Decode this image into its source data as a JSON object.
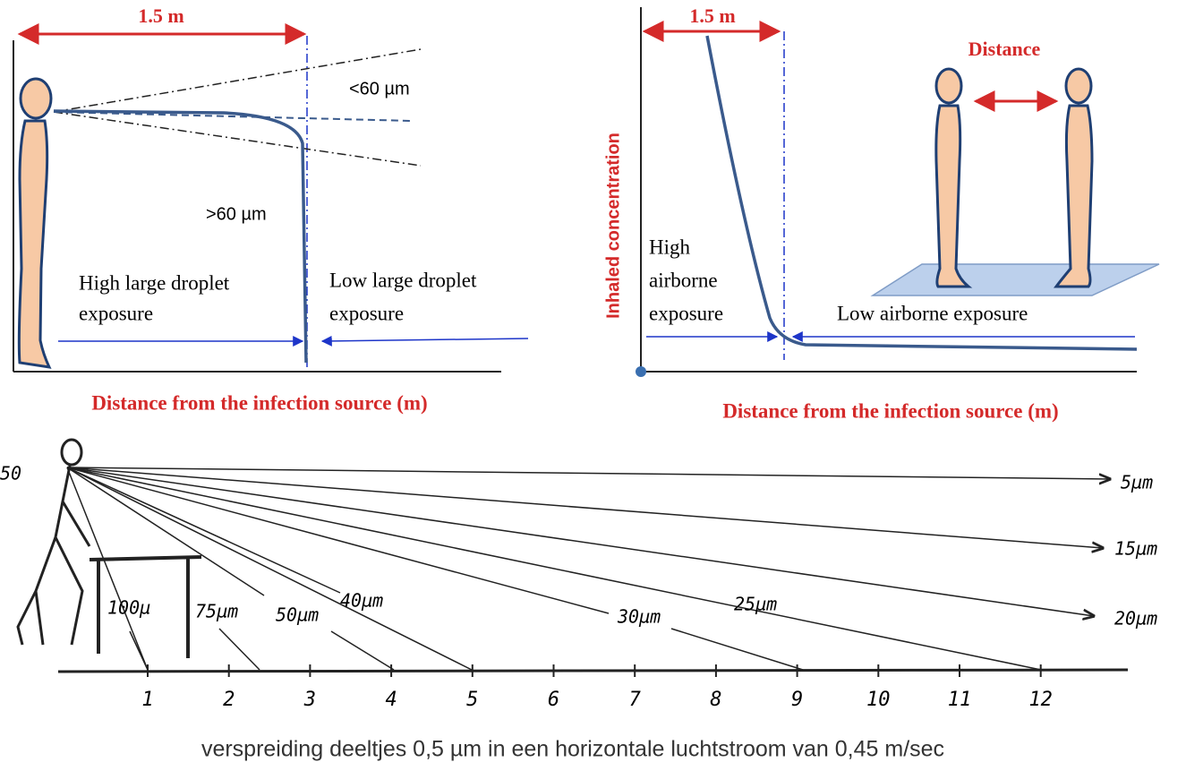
{
  "left_panel": {
    "distance": "1.5 m",
    "small_label": "<60 µm",
    "large_label": ">60 µm",
    "high_exposure": [
      "High large droplet",
      "exposure"
    ],
    "low_exposure": [
      "Low large droplet",
      "exposure"
    ],
    "x_axis_title": "Distance from the infection source (m)"
  },
  "right_panel": {
    "distance": "1.5 m",
    "y_axis_title": "Inhaled concentration",
    "people_label": "Distance",
    "high_exposure": [
      "High",
      "airborne",
      "exposure"
    ],
    "low_exposure": "Low airborne exposure",
    "x_axis_title": "Distance from the infection source (m)"
  },
  "bottom_panel": {
    "height_label": "50",
    "right_labels": [
      "5µm",
      "15µm",
      "20µm"
    ],
    "particle_labels": [
      "100µ",
      "75µm",
      "50µm",
      "40µm",
      "30µm",
      "25µm"
    ],
    "ticks": [
      1,
      2,
      3,
      4,
      5,
      6,
      7,
      8,
      9,
      10,
      11,
      12
    ],
    "caption": "verspreiding deeltjes 0,5 µm in een horizontale luchtstroom van 0,45 m/sec"
  }
}
